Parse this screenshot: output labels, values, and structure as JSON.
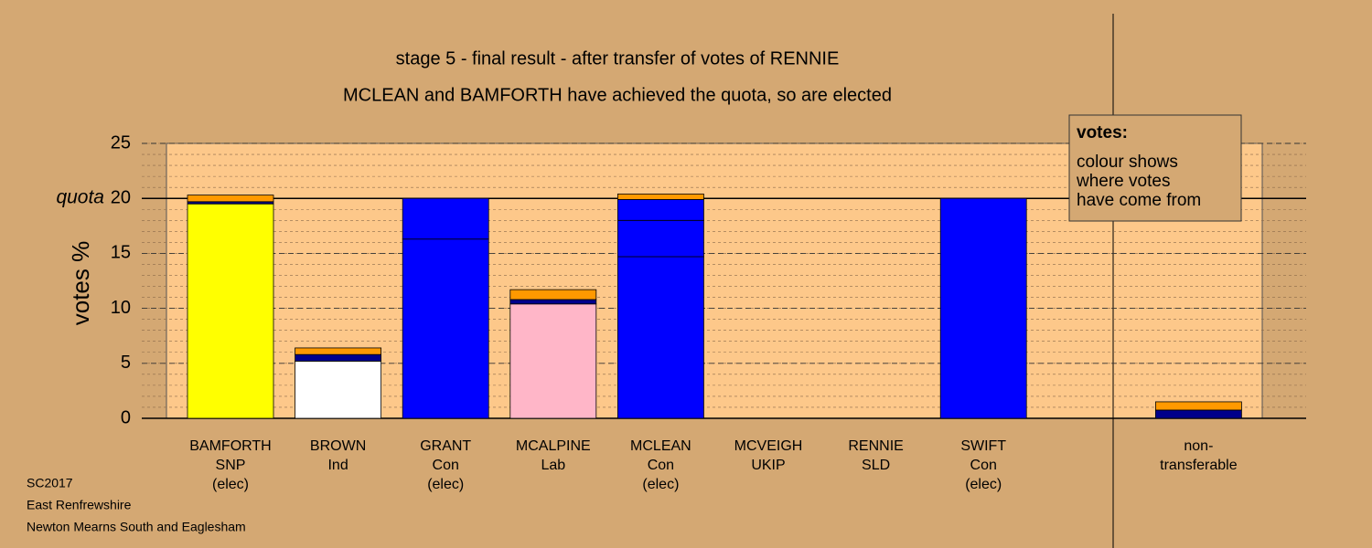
{
  "chart_data": {
    "type": "stacked-bar",
    "title": "stage 5 - final result - after transfer of votes of RENNIE",
    "subtitle": "MCLEAN and BAMFORTH have achieved the quota, so are elected",
    "y_label": "votes %",
    "categories": [
      [
        "BAMFORTH",
        "SNP",
        "(elec)"
      ],
      [
        "BROWN",
        "Ind"
      ],
      [
        "GRANT",
        "Con",
        "(elec)"
      ],
      [
        "MCALPINE",
        "Lab"
      ],
      [
        "MCLEAN",
        "Con",
        "(elec)"
      ],
      [
        "MCVEIGH",
        "UKIP"
      ],
      [
        "RENNIE",
        "SLD"
      ],
      [
        "SWIFT",
        "Con",
        "(elec)"
      ],
      [
        "non-",
        "transferable"
      ]
    ],
    "segments": [
      [
        {
          "value": 19.5,
          "color": "#ffff00"
        },
        {
          "value": 0.2,
          "color": "#00008b"
        },
        {
          "value": 0.6,
          "color": "#ff9900"
        }
      ],
      [
        {
          "value": 5.2,
          "color": "#ffffff"
        },
        {
          "value": 0.6,
          "color": "#00008b"
        },
        {
          "value": 0.6,
          "color": "#ff9900"
        }
      ],
      [
        {
          "value": 16.3,
          "color": "#0000ff"
        },
        {
          "value": 3.7,
          "color": "#0000ff"
        }
      ],
      [
        {
          "value": 10.4,
          "color": "#ffb6c8"
        },
        {
          "value": 0.4,
          "color": "#00008b"
        },
        {
          "value": 0.9,
          "color": "#ff9900"
        }
      ],
      [
        {
          "value": 14.7,
          "color": "#0000ff"
        },
        {
          "value": 3.3,
          "color": "#0000ff"
        },
        {
          "value": 1.9,
          "color": "#0000ff"
        },
        {
          "value": 0.5,
          "color": "#ff9900"
        }
      ],
      [
        {
          "value": 0,
          "color": "#0000ff"
        }
      ],
      [
        {
          "value": 0,
          "color": "#ff9900"
        }
      ],
      [
        {
          "value": 20,
          "color": "#0000ff"
        }
      ],
      [
        {
          "value": 0.75,
          "color": "#00008b"
        },
        {
          "value": 0.75,
          "color": "#ff9900"
        }
      ]
    ],
    "ylim": [
      0,
      25
    ],
    "yticks": [
      0,
      5,
      10,
      15,
      20,
      25
    ],
    "minor_step": 1,
    "quota": {
      "value": 20,
      "label": "quota"
    },
    "legend_box": {
      "title": "votes:",
      "lines": [
        "colour shows",
        "where votes",
        "have come from"
      ]
    },
    "footer": [
      "SC2017",
      "East Renfrewshire",
      "Newton Mearns South and Eaglesham"
    ]
  }
}
